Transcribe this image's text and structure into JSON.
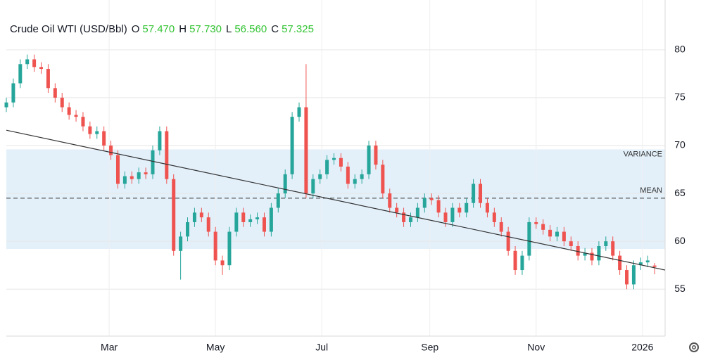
{
  "chart_data": {
    "type": "candlestick",
    "title": "Crude Oil WTI (USD/Bbl)",
    "ohlc_legend": [
      {
        "key": "O",
        "value": "57.470"
      },
      {
        "key": "H",
        "value": "57.730"
      },
      {
        "key": "L",
        "value": "56.560"
      },
      {
        "key": "C",
        "value": "57.325"
      }
    ],
    "legend_value_color": "#33c433",
    "up_color": "#26a69a",
    "down_color": "#ef5350",
    "x": [
      0,
      4,
      8,
      12,
      16,
      20,
      24,
      28,
      32,
      36,
      40,
      44,
      48,
      52,
      56,
      60,
      64,
      68,
      72,
      76,
      80,
      84,
      88,
      92,
      96,
      100,
      104,
      108,
      112,
      116,
      120,
      124,
      128,
      132,
      136,
      140,
      144,
      148,
      152,
      156,
      160,
      164,
      168,
      172,
      176,
      180,
      184,
      188,
      192,
      196,
      200,
      204,
      208,
      212,
      216,
      220,
      224,
      228,
      232,
      236,
      240,
      244,
      248,
      252,
      256,
      260,
      264,
      268,
      272,
      276,
      280,
      284,
      288,
      292,
      296,
      300,
      304,
      308,
      312,
      316,
      320,
      324,
      328,
      332,
      336,
      340,
      344,
      348,
      352,
      356,
      360,
      364,
      368,
      372
    ],
    "open": [
      74,
      74.5,
      76.5,
      78.5,
      79,
      78.2,
      78,
      76,
      75,
      74,
      73.2,
      73,
      72,
      71.2,
      71.5,
      70,
      69,
      66,
      66.8,
      66.5,
      67.2,
      67,
      69.5,
      71.5,
      66.5,
      59,
      60.5,
      62,
      63,
      62.5,
      61,
      58,
      57.5,
      61,
      63,
      62,
      62.3,
      62.5,
      61,
      63.5,
      65,
      67,
      73,
      74,
      65,
      66.5,
      67,
      68.5,
      68.7,
      67.8,
      66,
      66.5,
      67,
      70,
      68,
      65,
      63.5,
      63,
      62,
      62.5,
      63.5,
      64.5,
      64.3,
      63,
      62,
      63.5,
      63,
      64,
      66,
      64,
      63,
      62,
      61,
      59,
      57,
      58.5,
      62,
      61.8,
      61.2,
      60.5,
      61,
      60,
      59.5,
      58.5,
      58.8,
      58,
      59.5,
      60,
      58.5,
      57,
      55.5,
      57.5,
      57.8,
      57.47
    ],
    "high": [
      75,
      77,
      79,
      79.5,
      79.5,
      78.7,
      78.5,
      76.5,
      75.5,
      74.5,
      73.7,
      73.5,
      72.5,
      72,
      72,
      70.5,
      69.5,
      67.3,
      67.3,
      67.7,
      67.7,
      70,
      72,
      72,
      67,
      61,
      62.5,
      63.5,
      63.5,
      63,
      61.5,
      58.5,
      61.5,
      63.5,
      63.5,
      62.8,
      63,
      63,
      64,
      65.5,
      67.5,
      73.5,
      74.5,
      78.5,
      67,
      67.5,
      69,
      69.2,
      69.2,
      68.3,
      67,
      67.5,
      70.5,
      70.5,
      68.5,
      65.5,
      64,
      63.5,
      63,
      64,
      65,
      65,
      64.8,
      63.5,
      64,
      64,
      64.5,
      66.5,
      66.5,
      64.5,
      63.5,
      62.5,
      61.5,
      59.5,
      59,
      62.5,
      62.5,
      62.3,
      61.7,
      61.5,
      61.5,
      60.5,
      60,
      59.3,
      59.3,
      60,
      60.5,
      60.5,
      59,
      57.5,
      58,
      58.3,
      58.5,
      57.73
    ],
    "low": [
      73.5,
      74,
      76,
      78,
      77.7,
      77.5,
      75.5,
      74.5,
      73.5,
      72.7,
      72.5,
      71.5,
      70.7,
      70.7,
      69.5,
      68.5,
      65.5,
      65.5,
      66,
      66,
      66.5,
      66.5,
      69,
      66,
      58.5,
      56,
      60,
      61.5,
      62,
      60.5,
      57.5,
      56.5,
      57,
      60.5,
      61.5,
      61.5,
      61.8,
      60.5,
      60.5,
      63,
      64.5,
      66.5,
      72.5,
      64.5,
      64.5,
      66,
      66.5,
      68,
      67.3,
      65.5,
      65.5,
      66,
      66.5,
      67.5,
      64.5,
      63,
      62.5,
      61.5,
      61.5,
      62,
      63,
      63.8,
      62.5,
      61.5,
      61.5,
      62.5,
      62.5,
      63.5,
      63.5,
      62.5,
      61.5,
      60.5,
      58.5,
      56.5,
      56.5,
      58,
      61.3,
      60.7,
      60,
      60,
      59.5,
      59,
      58,
      58,
      57.5,
      57.5,
      59,
      58,
      56.5,
      55,
      55,
      57,
      57.3,
      56.56
    ],
    "close": [
      74.5,
      76.5,
      78.5,
      79,
      78.2,
      78,
      76,
      75,
      74,
      73.2,
      73,
      72,
      71.2,
      71.5,
      70,
      69,
      66,
      66.8,
      66.5,
      67.2,
      67,
      69.5,
      71.5,
      66.5,
      59,
      60.5,
      62,
      63,
      62.5,
      61,
      58,
      57.5,
      61,
      63,
      62,
      62.3,
      62.5,
      61,
      63.5,
      65,
      67,
      73,
      74,
      65,
      66.5,
      67,
      68.5,
      68.7,
      67.8,
      66,
      66.5,
      67,
      70,
      68,
      65,
      63.5,
      63,
      62,
      62.5,
      63.5,
      64.5,
      64.3,
      63,
      62,
      63.5,
      63,
      64,
      66,
      64,
      63,
      62,
      61,
      59,
      57,
      58.5,
      62,
      61.8,
      61.2,
      60.5,
      61,
      60,
      59.5,
      58.5,
      58.8,
      58,
      59.5,
      60,
      58.5,
      57,
      55.5,
      57.5,
      57.8,
      58,
      57.325
    ],
    "xlim": [
      0,
      378
    ],
    "xticks": [
      {
        "value": 59,
        "label": "Mar"
      },
      {
        "value": 120,
        "label": "May"
      },
      {
        "value": 181,
        "label": "Jul"
      },
      {
        "value": 243,
        "label": "Sep"
      },
      {
        "value": 304,
        "label": "Nov"
      },
      {
        "value": 365,
        "label": "2026"
      }
    ],
    "ylim": [
      50.1,
      85.2
    ],
    "yticks": [
      55,
      60,
      65,
      70,
      75,
      80
    ],
    "grid": true,
    "trend_line": {
      "start": [
        0,
        71.6
      ],
      "end": [
        378,
        57
      ],
      "color": "#333333"
    },
    "mean": {
      "label": "MEAN",
      "value": 64.5
    },
    "variance": {
      "label": "VARIANCE",
      "low": 59.2,
      "high": 69.6,
      "color": "#e3f0fa"
    }
  }
}
